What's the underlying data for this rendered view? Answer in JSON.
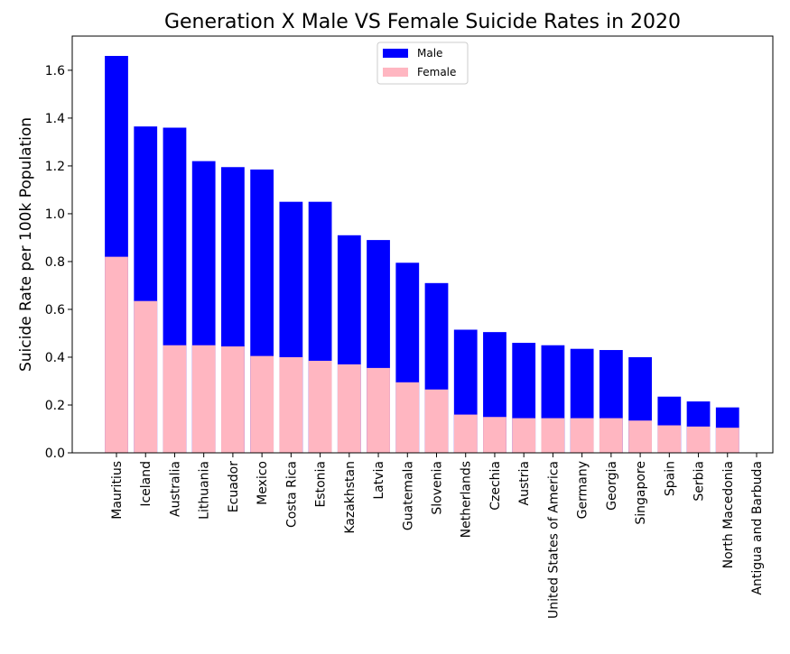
{
  "chart_data": {
    "type": "bar",
    "title": "Generation X Male VS Female Suicide Rates in 2020",
    "y_label": "Suicide Rate per 100k Population",
    "categories": [
      "Mauritius",
      "Iceland",
      "Australia",
      "Lithuania",
      "Ecuador",
      "Mexico",
      "Costa Rica",
      "Estonia",
      "Kazakhstan",
      "Latvia",
      "Guatemala",
      "Slovenia",
      "Netherlands",
      "Czechia",
      "Austria",
      "United States of America",
      "Germany",
      "Georgia",
      "Singapore",
      "Spain",
      "Serbia",
      "North Macedonia",
      "Antigua and Barbuda"
    ],
    "series": [
      {
        "name": "Male",
        "color": "#0000ff",
        "values": [
          1.66,
          1.365,
          1.36,
          1.22,
          1.195,
          1.185,
          1.05,
          1.05,
          0.91,
          0.89,
          0.795,
          0.71,
          0.515,
          0.505,
          0.46,
          0.45,
          0.435,
          0.43,
          0.4,
          0.235,
          0.215,
          0.19,
          0
        ]
      },
      {
        "name": "Female",
        "color": "#ffb6c1",
        "values": [
          0.82,
          0.635,
          0.45,
          0.45,
          0.445,
          0.405,
          0.4,
          0.385,
          0.37,
          0.355,
          0.295,
          0.265,
          0.16,
          0.15,
          0.145,
          0.145,
          0.145,
          0.145,
          0.135,
          0.115,
          0.11,
          0.105,
          0
        ]
      }
    ],
    "ylim": [
      0,
      1.743
    ],
    "yticks": [
      {
        "value": 0,
        "label": "0.0"
      },
      0.2,
      0.4,
      0.6,
      0.8,
      {
        "value": 1,
        "label": "1.0"
      },
      1.2,
      1.4,
      1.6
    ],
    "legend": "upper center"
  }
}
